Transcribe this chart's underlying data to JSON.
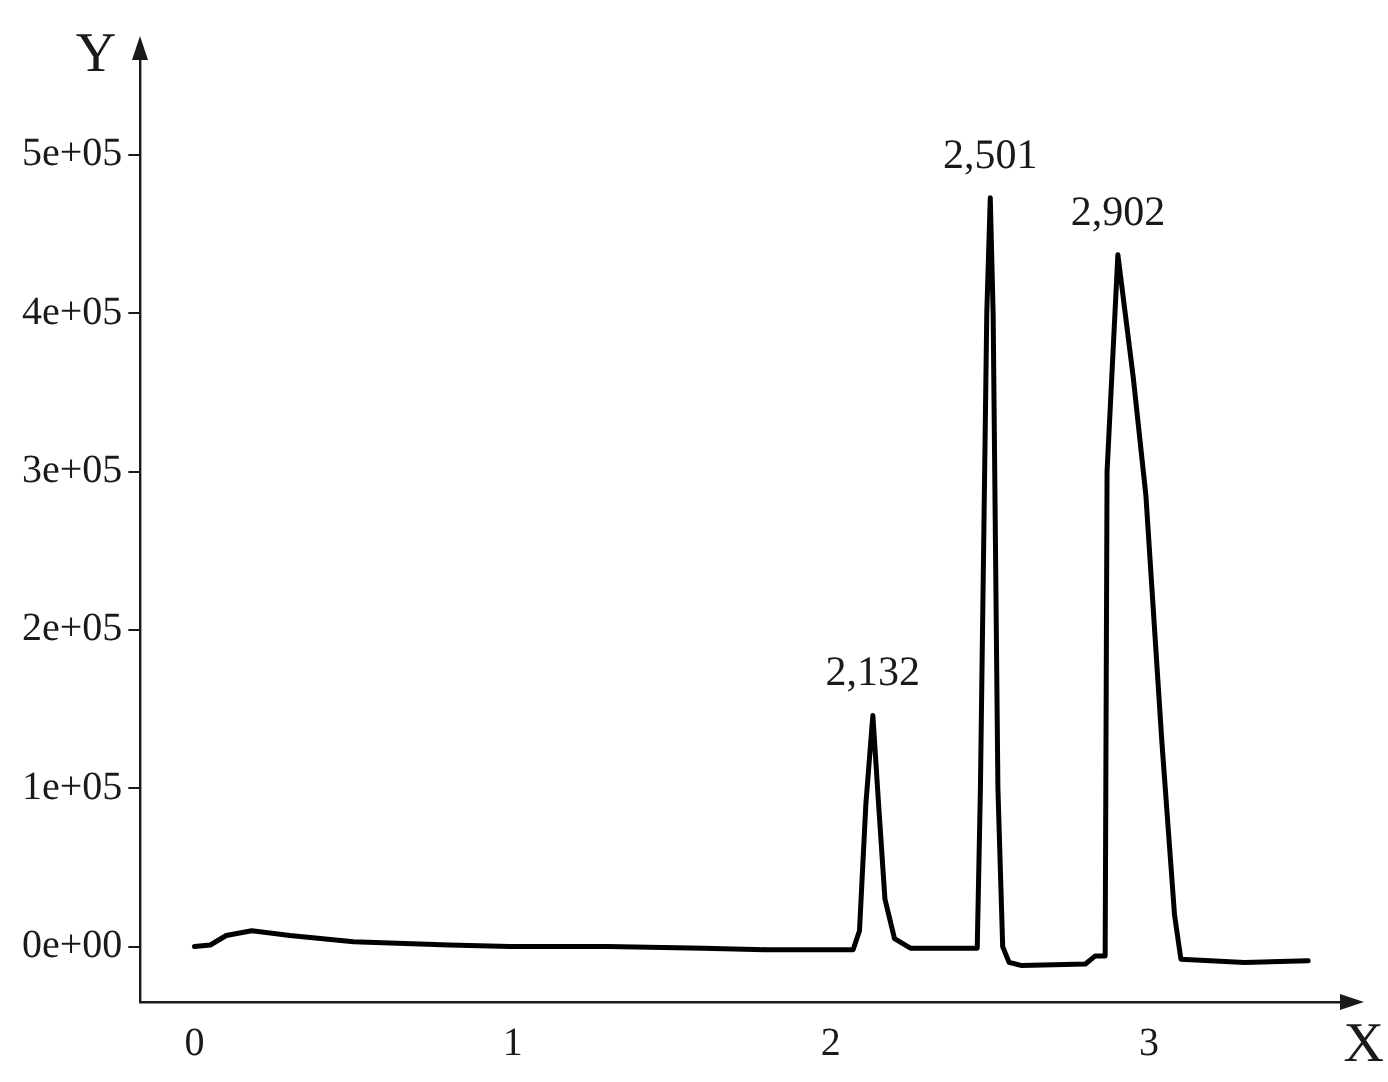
{
  "chart_data": {
    "type": "line",
    "xlabel": "X",
    "ylabel": "Y",
    "x": [
      0,
      0.05,
      0.1,
      0.18,
      0.3,
      0.5,
      0.8,
      1.0,
      1.3,
      1.6,
      1.8,
      2.0,
      2.07,
      2.09,
      2.11,
      2.132,
      2.15,
      2.17,
      2.2,
      2.25,
      2.38,
      2.46,
      2.47,
      2.49,
      2.501,
      2.51,
      2.525,
      2.54,
      2.56,
      2.6,
      2.8,
      2.83,
      2.862,
      2.868,
      2.902,
      2.95,
      2.99,
      3.04,
      3.08,
      3.1,
      3.3,
      3.5
    ],
    "series": [
      {
        "color": "#000000",
        "values": [
          0,
          1000,
          7000,
          10000,
          7000,
          3000,
          1000,
          0,
          0,
          -1000,
          -2000,
          -2000,
          -2000,
          10000,
          90000,
          146000,
          90000,
          30000,
          5000,
          -1000,
          -1000,
          -1000,
          100000,
          400000,
          473000,
          400000,
          100000,
          0,
          -10000,
          -12000,
          -11000,
          -6000,
          -6000,
          300000,
          437000,
          360000,
          285000,
          130000,
          20000,
          -8000,
          -10000,
          -9000
        ]
      }
    ],
    "xlim": [
      -0.17,
      3.6
    ],
    "ylim": [
      -35000,
      560000
    ],
    "xticks": [
      0,
      1,
      2,
      3
    ],
    "yticks": [
      {
        "value": 0,
        "label": "0e+00"
      },
      {
        "value": 100000,
        "label": "1e+05"
      },
      {
        "value": 200000,
        "label": "2e+05"
      },
      {
        "value": 300000,
        "label": "3e+05"
      },
      {
        "value": 400000,
        "label": "4e+05"
      },
      {
        "value": 500000,
        "label": "5e+05"
      }
    ],
    "annotations": [
      {
        "text": "2,132",
        "x": 2.132,
        "y": 146000
      },
      {
        "text": "2,501",
        "x": 2.501,
        "y": 473000
      },
      {
        "text": "2,902",
        "x": 2.902,
        "y": 437000
      }
    ],
    "grid": false,
    "legend": false,
    "marker": "none",
    "line_style": "solid"
  }
}
